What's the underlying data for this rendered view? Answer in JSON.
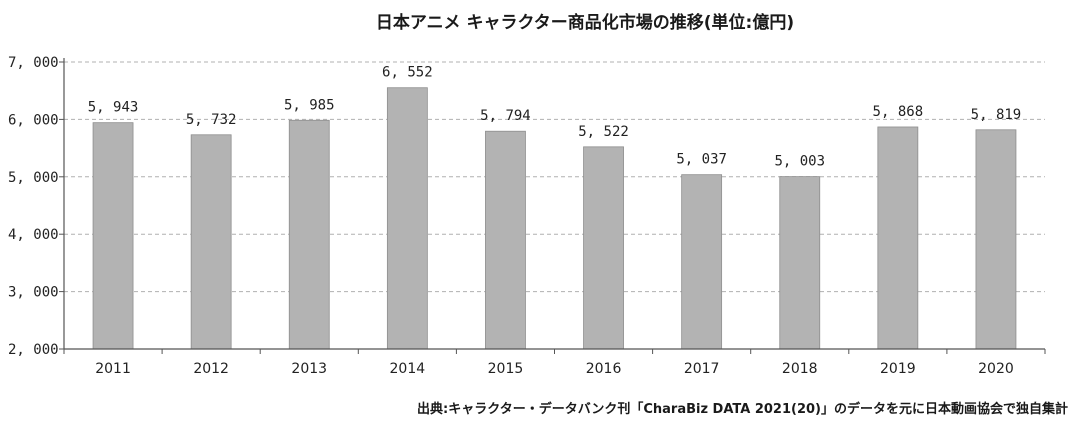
{
  "chart_data": {
    "type": "bar",
    "title": "日本アニメ キャラクター商品化市場の推移(単位:億円)",
    "categories": [
      "2011",
      "2012",
      "2013",
      "2014",
      "2015",
      "2016",
      "2017",
      "2018",
      "2019",
      "2020"
    ],
    "values": [
      5943,
      5732,
      5985,
      6552,
      5794,
      5522,
      5037,
      5003,
      5868,
      5819
    ],
    "value_labels": [
      "5, 943",
      "5, 732",
      "5, 985",
      "6, 552",
      "5, 794",
      "5, 522",
      "5, 037",
      "5, 003",
      "5, 868",
      "5, 819"
    ],
    "ylim": [
      2000,
      7000
    ],
    "yticks": [
      2000,
      3000,
      4000,
      5000,
      6000,
      7000
    ],
    "ytick_labels": [
      "2, 000",
      "3, 000",
      "4, 000",
      "5, 000",
      "6, 000",
      "7, 000"
    ],
    "grid": true,
    "bar_color": "#b3b3b3",
    "grid_color": "#b0b0b0",
    "xlabel": "",
    "ylabel": ""
  },
  "source_note": "出典:キャラクター・データバンク刊「CharaBiz DATA 2021(20)」のデータを元に日本動画協会で独自集計"
}
